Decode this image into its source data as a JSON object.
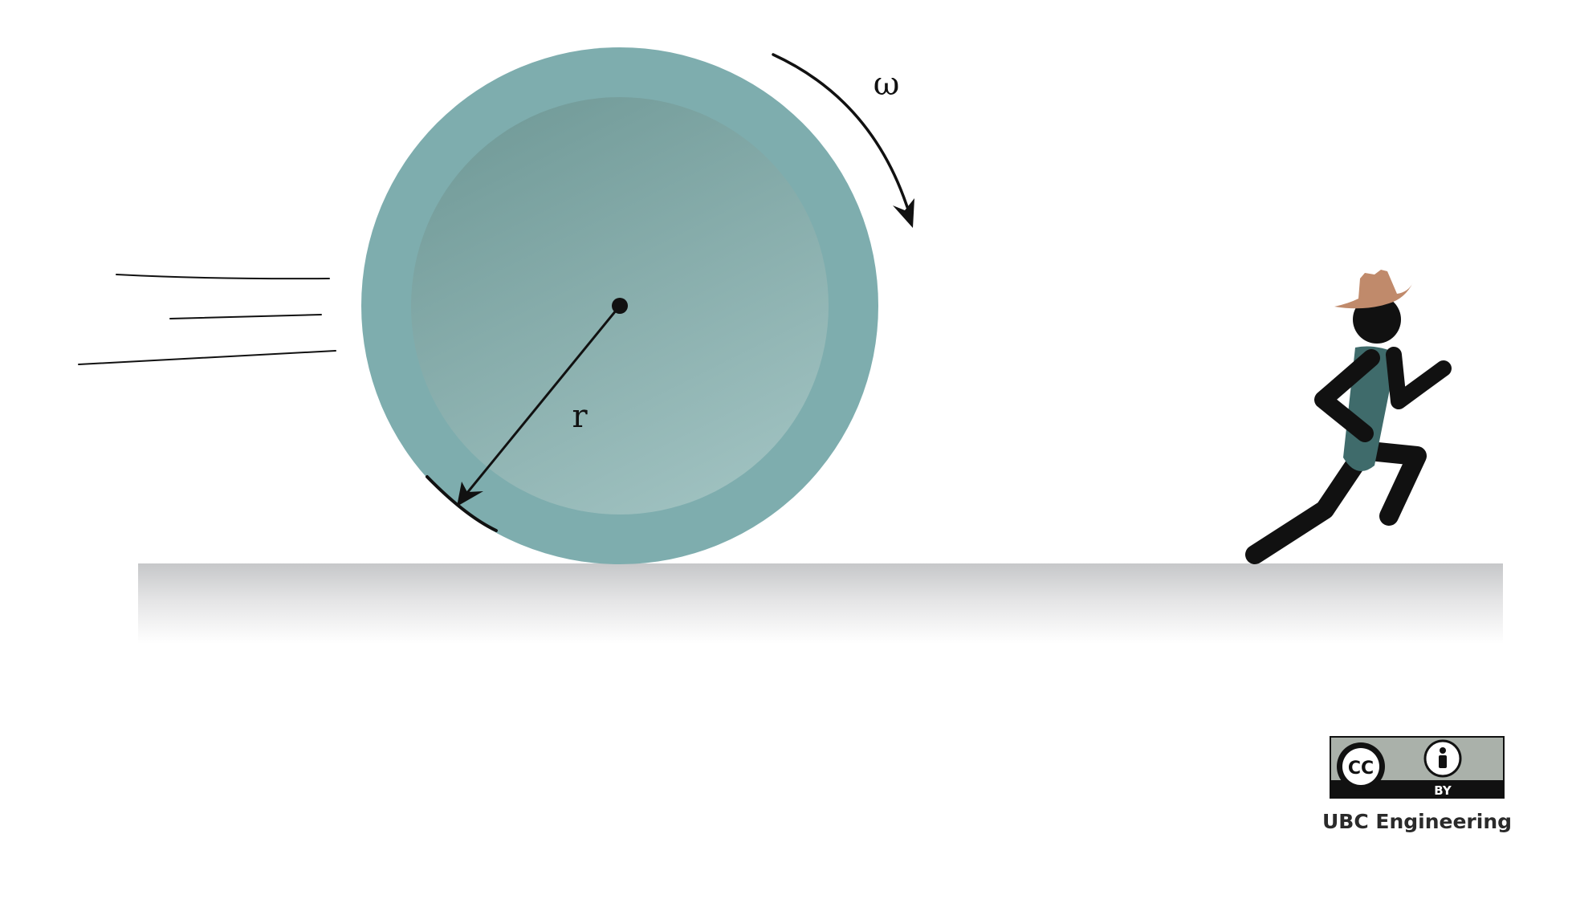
{
  "diagram": {
    "labels": {
      "omega": "ω",
      "radius": "r"
    },
    "colors": {
      "wheel_outer": "#7eadae",
      "wheel_inner_top": "#739c9a",
      "wheel_inner_bottom": "#9cbfbe",
      "ground_top": "#c9cacc",
      "runner_body": "#111111",
      "runner_torso": "#3f6b6b",
      "runner_hat": "#c08a6b"
    }
  },
  "license": {
    "badge_cc": "CC",
    "badge_by": "BY",
    "credit": "UBC Engineering"
  }
}
